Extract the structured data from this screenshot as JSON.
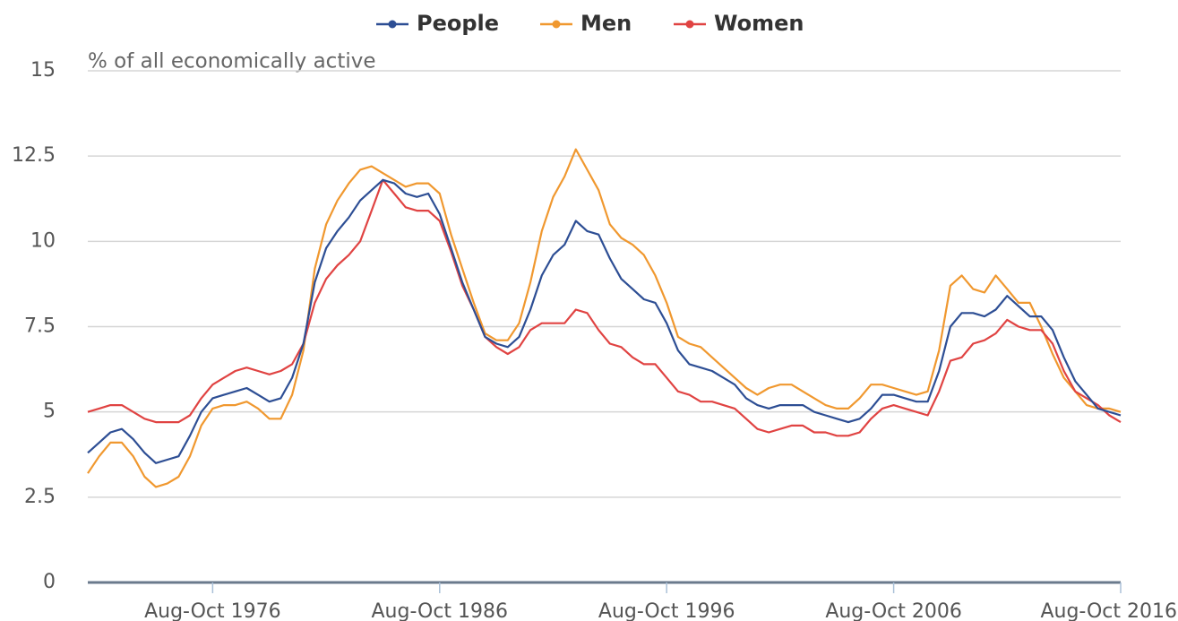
{
  "chart_data": {
    "type": "line",
    "y_label": "% of all economically active",
    "x": [
      1971.25,
      1971.75,
      1972.25,
      1972.75,
      1973.25,
      1973.75,
      1974.25,
      1974.75,
      1975.25,
      1975.75,
      1976.25,
      1976.75,
      1977.25,
      1977.75,
      1978.25,
      1978.75,
      1979.25,
      1979.75,
      1980.25,
      1980.75,
      1981.25,
      1981.75,
      1982.25,
      1982.75,
      1983.25,
      1983.75,
      1984.25,
      1984.75,
      1985.25,
      1985.75,
      1986.25,
      1986.75,
      1987.25,
      1987.75,
      1988.25,
      1988.75,
      1989.25,
      1989.75,
      1990.25,
      1990.75,
      1991.25,
      1991.75,
      1992.25,
      1992.75,
      1993.25,
      1993.75,
      1994.25,
      1994.75,
      1995.25,
      1995.75,
      1996.25,
      1996.75,
      1997.25,
      1997.75,
      1998.25,
      1998.75,
      1999.25,
      1999.75,
      2000.25,
      2000.75,
      2001.25,
      2001.75,
      2002.25,
      2002.75,
      2003.25,
      2003.75,
      2004.25,
      2004.75,
      2005.25,
      2005.75,
      2006.25,
      2006.75,
      2007.25,
      2007.75,
      2008.25,
      2008.75,
      2009.25,
      2009.75,
      2010.25,
      2010.75,
      2011.25,
      2011.75,
      2012.25,
      2012.75,
      2013.25,
      2013.75,
      2014.25,
      2014.75,
      2015.25,
      2015.75,
      2016.25,
      2016.75
    ],
    "series": [
      {
        "name": "People",
        "color": "#2d4e94",
        "values": [
          3.8,
          4.1,
          4.4,
          4.5,
          4.2,
          3.8,
          3.5,
          3.6,
          3.7,
          4.3,
          5.0,
          5.4,
          5.5,
          5.6,
          5.7,
          5.5,
          5.3,
          5.4,
          6.0,
          7.0,
          8.8,
          9.8,
          10.3,
          10.7,
          11.2,
          11.5,
          11.8,
          11.7,
          11.4,
          11.3,
          11.4,
          10.8,
          9.8,
          8.8,
          8.0,
          7.2,
          7.0,
          6.9,
          7.2,
          8.0,
          9.0,
          9.6,
          9.9,
          10.6,
          10.3,
          10.2,
          9.5,
          8.9,
          8.6,
          8.3,
          8.2,
          7.6,
          6.8,
          6.4,
          6.3,
          6.2,
          6.0,
          5.8,
          5.4,
          5.2,
          5.1,
          5.2,
          5.2,
          5.2,
          5.0,
          4.9,
          4.8,
          4.7,
          4.8,
          5.1,
          5.5,
          5.5,
          5.4,
          5.3,
          5.3,
          6.2,
          7.5,
          7.9,
          7.9,
          7.8,
          8.0,
          8.4,
          8.1,
          7.8,
          7.8,
          7.4,
          6.6,
          5.9,
          5.5,
          5.1,
          5.0,
          4.9
        ]
      },
      {
        "name": "Men",
        "color": "#f0982f",
        "values": [
          3.2,
          3.7,
          4.1,
          4.1,
          3.7,
          3.1,
          2.8,
          2.9,
          3.1,
          3.7,
          4.6,
          5.1,
          5.2,
          5.2,
          5.3,
          5.1,
          4.8,
          4.8,
          5.5,
          6.8,
          9.2,
          10.5,
          11.2,
          11.7,
          12.1,
          12.2,
          12.0,
          11.8,
          11.6,
          11.7,
          11.7,
          11.4,
          10.2,
          9.2,
          8.2,
          7.3,
          7.1,
          7.1,
          7.6,
          8.8,
          10.3,
          11.3,
          11.9,
          12.7,
          12.1,
          11.5,
          10.5,
          10.1,
          9.9,
          9.6,
          9.0,
          8.2,
          7.2,
          7.0,
          6.9,
          6.6,
          6.3,
          6.0,
          5.7,
          5.5,
          5.7,
          5.8,
          5.8,
          5.6,
          5.4,
          5.2,
          5.1,
          5.1,
          5.4,
          5.8,
          5.8,
          5.7,
          5.6,
          5.5,
          5.6,
          6.8,
          8.7,
          9.0,
          8.6,
          8.5,
          9.0,
          8.6,
          8.2,
          8.2,
          7.5,
          6.7,
          6.0,
          5.6,
          5.2,
          5.1,
          5.1,
          5.0
        ]
      },
      {
        "name": "Women",
        "color": "#e04342",
        "values": [
          5.0,
          5.1,
          5.2,
          5.2,
          5.0,
          4.8,
          4.7,
          4.7,
          4.7,
          4.9,
          5.4,
          5.8,
          6.0,
          6.2,
          6.3,
          6.2,
          6.1,
          6.2,
          6.4,
          7.0,
          8.2,
          8.9,
          9.3,
          9.6,
          10.0,
          10.9,
          11.8,
          11.4,
          11.0,
          10.9,
          10.9,
          10.6,
          9.7,
          8.7,
          8.0,
          7.2,
          6.9,
          6.7,
          6.9,
          7.4,
          7.6,
          7.6,
          7.6,
          8.0,
          7.9,
          7.4,
          7.0,
          6.9,
          6.6,
          6.4,
          6.4,
          6.0,
          5.6,
          5.5,
          5.3,
          5.3,
          5.2,
          5.1,
          4.8,
          4.5,
          4.4,
          4.5,
          4.6,
          4.6,
          4.4,
          4.4,
          4.3,
          4.3,
          4.4,
          4.8,
          5.1,
          5.2,
          5.1,
          5.0,
          4.9,
          5.6,
          6.5,
          6.6,
          7.0,
          7.1,
          7.3,
          7.7,
          7.5,
          7.4,
          7.4,
          7.0,
          6.2,
          5.6,
          5.4,
          5.2,
          4.9,
          4.7
        ]
      }
    ],
    "xlim": [
      1971.25,
      2016.75
    ],
    "xticks": [
      {
        "value": 1976.75,
        "label": "Aug-Oct 1976"
      },
      {
        "value": 1986.75,
        "label": "Aug-Oct 1986"
      },
      {
        "value": 1996.75,
        "label": "Aug-Oct 1996"
      },
      {
        "value": 2006.75,
        "label": "Aug-Oct 2006"
      },
      {
        "value": 2016.75,
        "label": "Aug-Oct 2016"
      }
    ],
    "ylim": [
      0,
      15
    ],
    "yticks": [
      0,
      2.5,
      5,
      7.5,
      10,
      12.5,
      15
    ],
    "grid": true,
    "legend": "top"
  }
}
